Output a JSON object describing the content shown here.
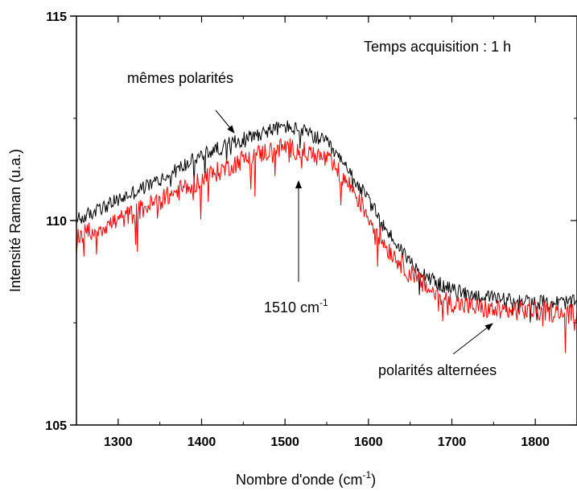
{
  "chart_data": {
    "type": "line",
    "title": "",
    "xlabel": "Nombre d'onde (cm",
    "xlabel_sup": "-1",
    "xlabel_close": ")",
    "ylabel": "Intensité Raman (u.a.)",
    "xlim": [
      1250,
      1850
    ],
    "ylim": [
      105,
      115
    ],
    "x_ticks": [
      1300,
      1400,
      1500,
      1600,
      1700,
      1800
    ],
    "y_ticks_labeled": [
      105,
      110,
      115
    ],
    "y_ticks_minor": [
      107.5,
      112.5
    ],
    "grid": false,
    "colors": {
      "memes": "#000000",
      "alternees": "#ff0000",
      "axes": "#000000"
    },
    "series": [
      {
        "key": "memes",
        "x": [
          1250,
          1300,
          1350,
          1400,
          1450,
          1480,
          1500,
          1520,
          1550,
          1580,
          1600,
          1620,
          1650,
          1680,
          1700,
          1720,
          1750,
          1800,
          1850
        ],
        "values": [
          110.0,
          110.5,
          111.0,
          111.6,
          112.0,
          112.2,
          112.3,
          112.2,
          111.9,
          111.1,
          110.5,
          109.8,
          109.0,
          108.5,
          108.3,
          108.2,
          108.1,
          108.0,
          108.0
        ],
        "noise": 0.18
      },
      {
        "key": "alternees",
        "x": [
          1250,
          1300,
          1350,
          1400,
          1450,
          1480,
          1500,
          1520,
          1550,
          1580,
          1600,
          1620,
          1650,
          1680,
          1700,
          1720,
          1750,
          1800,
          1850
        ],
        "values": [
          109.6,
          110.0,
          110.5,
          111.0,
          111.5,
          111.7,
          111.8,
          111.7,
          111.5,
          110.8,
          110.1,
          109.4,
          108.7,
          108.2,
          108.0,
          107.9,
          107.8,
          107.8,
          107.7
        ],
        "noise": 0.25
      }
    ],
    "annotations": {
      "acquisition": "Temps acquisition : 1 h",
      "memes_label": "mêmes polarités",
      "peak_label": "1510 cm",
      "peak_sup": "-1",
      "alternees_label": "polarités alternées",
      "peak_x": 1510
    }
  }
}
